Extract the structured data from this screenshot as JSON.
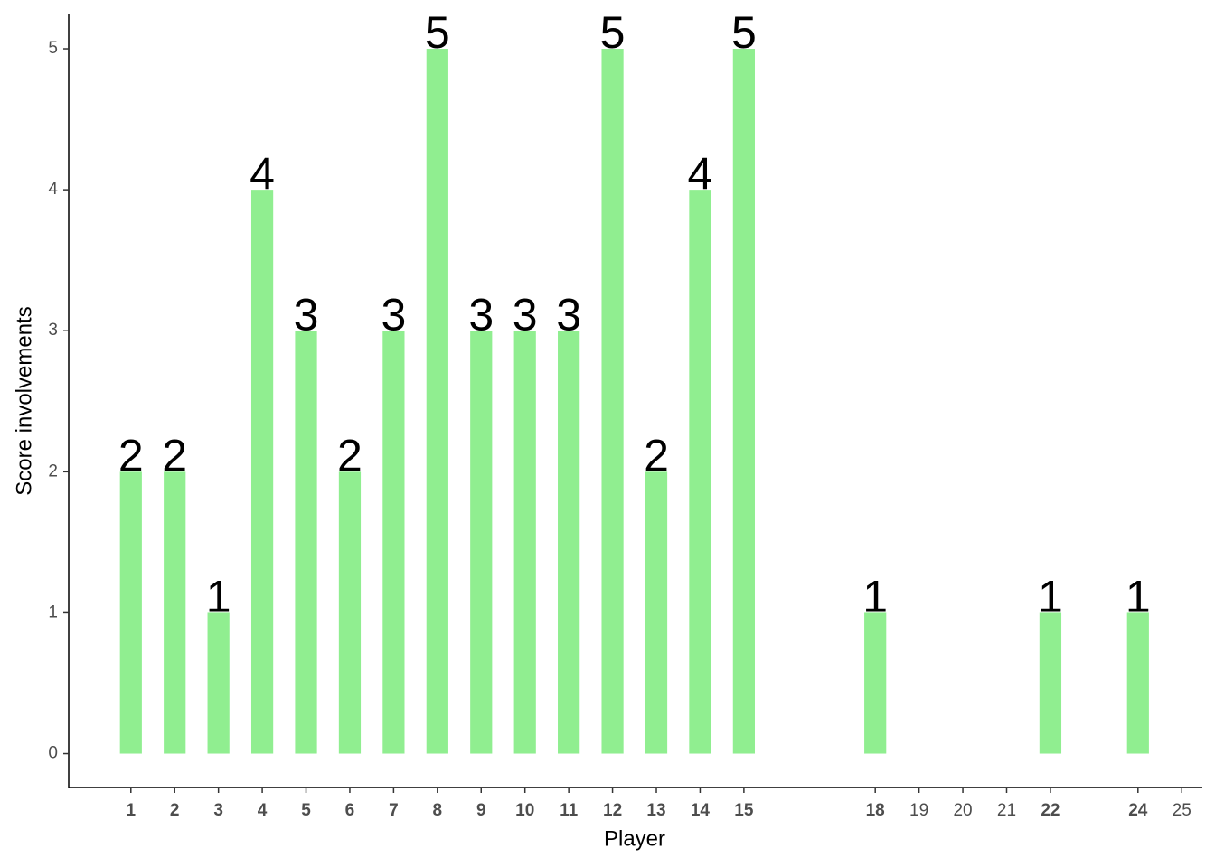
{
  "chart_data": {
    "type": "bar",
    "x_label": "Player",
    "y_label": "Score involvements",
    "x": [
      1,
      2,
      3,
      4,
      5,
      6,
      7,
      8,
      9,
      10,
      11,
      12,
      13,
      14,
      15,
      18,
      22,
      24
    ],
    "values": [
      2,
      2,
      1,
      4,
      3,
      2,
      3,
      5,
      3,
      3,
      3,
      5,
      2,
      4,
      5,
      1,
      1,
      1
    ],
    "color": "#90ee90",
    "xlim": [
      -0.42,
      25.47
    ],
    "xticks": [
      1,
      2,
      3,
      4,
      5,
      6,
      7,
      8,
      9,
      10,
      11,
      12,
      13,
      14,
      15,
      18,
      19,
      20,
      21,
      22,
      24,
      25
    ],
    "ylim": [
      -0.24,
      5.25
    ],
    "yticks": [
      0,
      1,
      2,
      3,
      4,
      5
    ],
    "grid": false
  }
}
